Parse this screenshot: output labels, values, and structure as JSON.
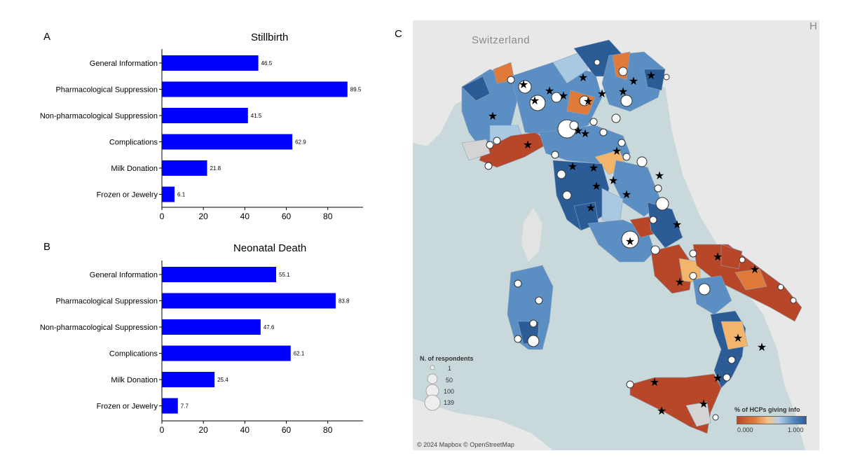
{
  "panels": {
    "a_letter": "A",
    "b_letter": "B",
    "c_letter": "C"
  },
  "chart_data": [
    {
      "type": "bar",
      "orientation": "horizontal",
      "title": "Stillbirth",
      "categories": [
        "General Information",
        "Pharmacological Suppression",
        "Non-pharmacological Suppression",
        "Complications",
        "Milk Donation",
        "Frozen or Jewelry"
      ],
      "values": [
        46.5,
        89.5,
        41.5,
        62.9,
        21.8,
        6.1
      ],
      "value_labels": [
        "46.5",
        "89.5",
        "41.5",
        "62.9",
        "21.8",
        "6.1"
      ],
      "xticks": [
        "0",
        "20",
        "40",
        "60",
        "80"
      ],
      "xlim": [
        0,
        97
      ],
      "bar_color": "#0000ff"
    },
    {
      "type": "bar",
      "orientation": "horizontal",
      "title": "Neonatal Death",
      "categories": [
        "General Information",
        "Pharmacological Suppression",
        "Non-pharmacological Suppression",
        "Complications",
        "Milk Donation",
        "Frozen or Jewelry"
      ],
      "values": [
        55.1,
        83.8,
        47.6,
        62.1,
        25.4,
        7.7
      ],
      "value_labels": [
        "55.1",
        "83.8",
        "47.6",
        "62.1",
        "25.4",
        "7.7"
      ],
      "xticks": [
        "0",
        "20",
        "40",
        "60",
        "80"
      ],
      "xlim": [
        0,
        97
      ],
      "bar_color": "#0000ff"
    }
  ],
  "map": {
    "country_label": "Switzerland",
    "corner_label": "H",
    "size_legend_title": "N. of respondents",
    "size_legend_values": [
      "1",
      "50",
      "100",
      "139"
    ],
    "color_legend_title": "% of HCPs giving info",
    "color_legend_min": "0.000",
    "color_legend_max": "1.000",
    "attribution": "© 2024 Mapbox © OpenStreetMap",
    "colors": {
      "sea": "#c9d8da",
      "land": "#e8e8e8",
      "high": "#2c5c96",
      "mid_high": "#5b8fc4",
      "light_blue": "#a9c8e2",
      "orange_light": "#f3b56c",
      "orange": "#e07a3a",
      "rust": "#b8472a",
      "grey": "#d4d4d4"
    }
  }
}
